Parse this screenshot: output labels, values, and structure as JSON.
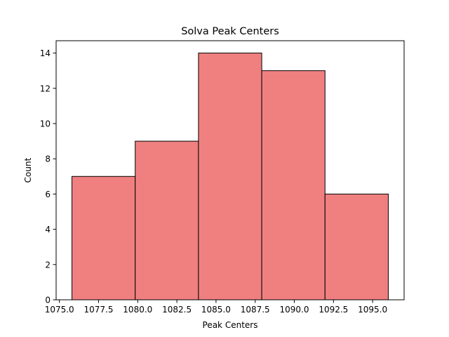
{
  "chart_data": {
    "type": "bar",
    "title": "Solva Peak Centers",
    "xlabel": "Peak Centers",
    "ylabel": "Count",
    "bins": [
      {
        "x0": 1075.8,
        "x1": 1079.84,
        "count": 7
      },
      {
        "x0": 1079.84,
        "x1": 1083.88,
        "count": 9
      },
      {
        "x0": 1083.88,
        "x1": 1087.92,
        "count": 14
      },
      {
        "x0": 1087.92,
        "x1": 1091.96,
        "count": 13
      },
      {
        "x0": 1091.96,
        "x1": 1096.0,
        "count": 6
      }
    ],
    "xlim": [
      1074.79,
      1097.01
    ],
    "ylim": [
      0,
      14.7
    ],
    "xticks": [
      1075.0,
      1077.5,
      1080.0,
      1082.5,
      1085.0,
      1087.5,
      1090.0,
      1092.5,
      1095.0
    ],
    "xtick_labels": [
      "1075.0",
      "1077.5",
      "1080.0",
      "1082.5",
      "1085.0",
      "1087.5",
      "1090.0",
      "1092.5",
      "1095.0"
    ],
    "yticks": [
      0,
      2,
      4,
      6,
      8,
      10,
      12,
      14
    ],
    "ytick_labels": [
      "0",
      "2",
      "4",
      "6",
      "8",
      "10",
      "12",
      "14"
    ],
    "bar_color": "#f08080",
    "edge_color": "#000000",
    "grid": false,
    "legend": false
  }
}
